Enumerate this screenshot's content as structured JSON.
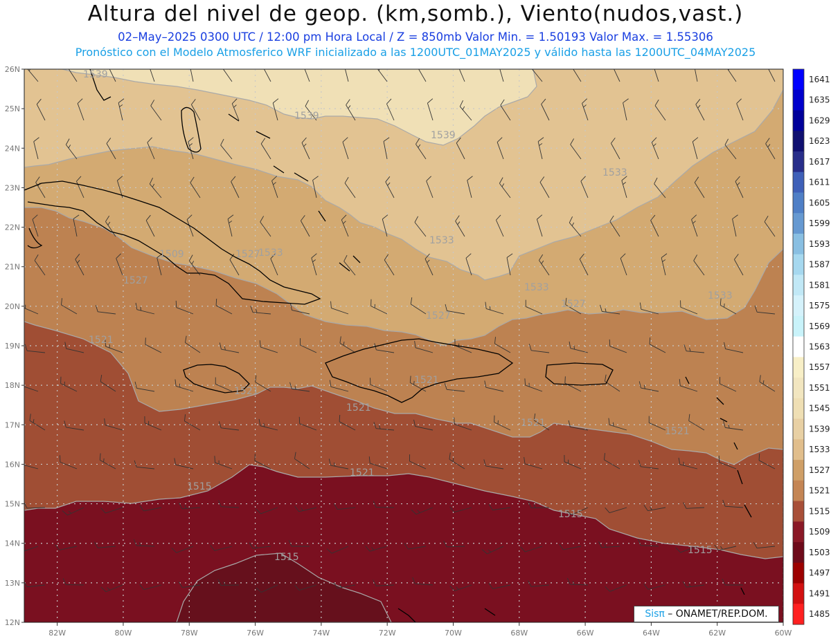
{
  "header": {
    "title": "Altura del nivel de geop. (km,somb.), Viento(nudos,vast.)",
    "subtitle_1": "02–May–2025  0300 UTC / 12:00 pm Hora Local / Z = 850mb    Valor Min. = 1.50193  Valor Max. = 1.55306",
    "subtitle_2": "Pronóstico con el Modelo Atmosferico WRF inicializado a las 1200UTC_01MAY2025 y válido hasta las  1200UTC_04MAY2025"
  },
  "map": {
    "lon_range": [
      -83,
      -60
    ],
    "lat_range": [
      12,
      26
    ],
    "lon_labels": [
      "82W",
      "80W",
      "78W",
      "76W",
      "74W",
      "72W",
      "70W",
      "68W",
      "66W",
      "64W",
      "62W",
      "60W"
    ],
    "lat_labels": [
      "12N",
      "13N",
      "14N",
      "15N",
      "16N",
      "17N",
      "18N",
      "19N",
      "20N",
      "21N",
      "22N",
      "23N",
      "24N",
      "25N",
      "26N"
    ],
    "contour_labels": [
      "1539",
      "1539",
      "1539",
      "1533",
      "1533",
      "1533",
      "1533",
      "1533",
      "1527",
      "1527",
      "1527",
      "1527",
      "1521",
      "1521",
      "1521",
      "1521",
      "1521",
      "1521",
      "1521",
      "1515",
      "1515",
      "1515",
      "1515",
      "1509"
    ],
    "colors": {
      "band_1509": "#7a1020",
      "band_1503": "#66101c",
      "band_1515": "#a04e34",
      "band_1521": "#bd8251",
      "band_1527": "#d3aa72",
      "band_1533": "#e2c392",
      "band_1539": "#f0e0b6",
      "contour": "#a9a9a9",
      "coast": "#000000"
    }
  },
  "colorbar": {
    "levels": [
      "1641",
      "1635",
      "1629",
      "1623",
      "1617",
      "1611",
      "1605",
      "1599",
      "1593",
      "1587",
      "1581",
      "1575",
      "1569",
      "1563",
      "1557",
      "1551",
      "1545",
      "1539",
      "1533",
      "1527",
      "1521",
      "1515",
      "1509",
      "1503",
      "1497",
      "1491",
      "1485"
    ],
    "colors": [
      "#0000ff",
      "#0000cc",
      "#00009a",
      "#101070",
      "#282e8a",
      "#3f60b8",
      "#4f7fc6",
      "#6699d1",
      "#89bfe2",
      "#a6d8ef",
      "#c1e8f6",
      "#d5f2fb",
      "#c9f3fa",
      "#ffffff",
      "#f8efc7",
      "#f2e6c0",
      "#efdfb4",
      "#e8d0a4",
      "#e1be8c",
      "#cf9f67",
      "#c48554",
      "#a84f38",
      "#8a1826",
      "#6e0a1a",
      "#9c0000",
      "#d21010",
      "#ff2020"
    ]
  },
  "credit": {
    "brand": "Sisπ",
    "text": " – ONAMET/REP.DOM."
  }
}
